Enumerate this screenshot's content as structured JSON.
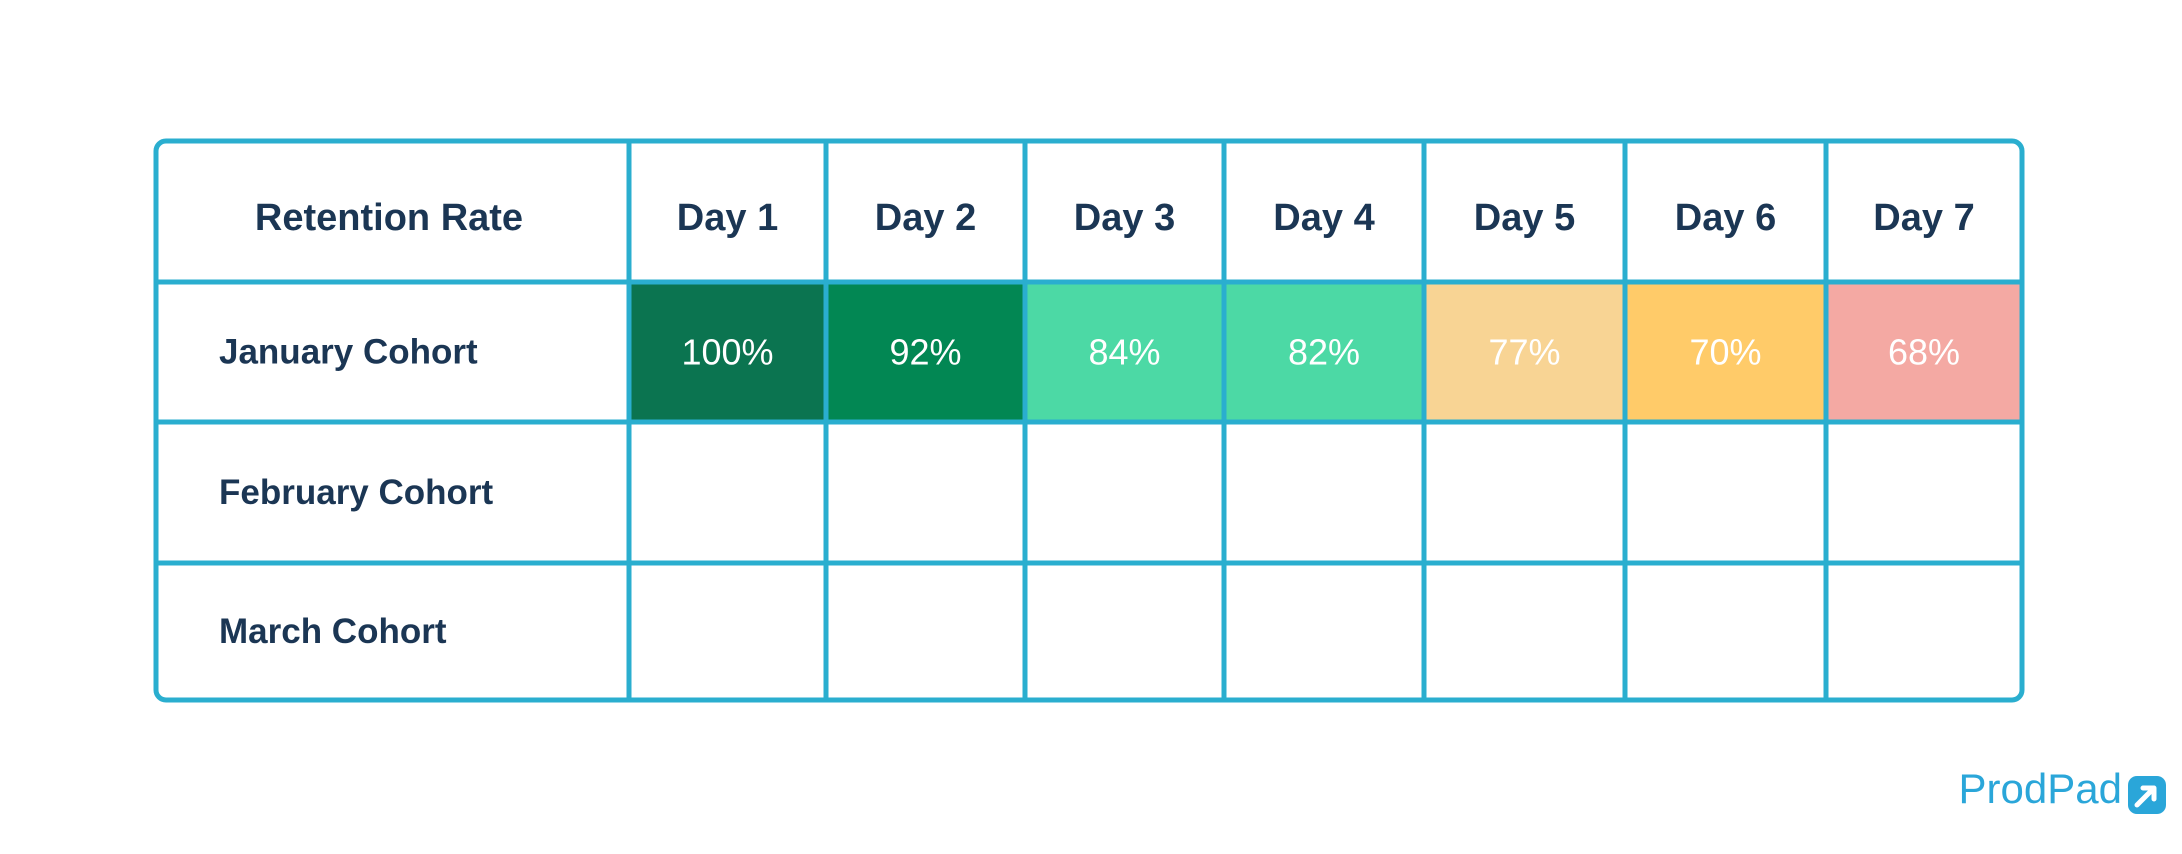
{
  "chart_data": {
    "type": "heatmap",
    "corner_label": "Retention Rate",
    "columns": [
      "Day 1",
      "Day 2",
      "Day 3",
      "Day 4",
      "Day 5",
      "Day 6",
      "Day 7"
    ],
    "rows": [
      {
        "label": "January Cohort",
        "values": [
          100,
          92,
          84,
          82,
          77,
          70,
          68
        ],
        "cell_labels": [
          "100%",
          "92%",
          "84%",
          "82%",
          "77%",
          "70%",
          "68%"
        ]
      },
      {
        "label": "February Cohort",
        "values": [],
        "cell_labels": []
      },
      {
        "label": "March Cohort",
        "values": [],
        "cell_labels": []
      }
    ],
    "cell_colors": [
      "#0b7450",
      "#028753",
      "#4cd9a5",
      "#4cd9a5",
      "#f8d494",
      "#ffcb69",
      "#f4a9a3"
    ],
    "border_color": "#2aaecf",
    "text_color": "#1b3654"
  },
  "brand": {
    "name": "ProdPad",
    "color": "#2aa6d9",
    "icon": "prodpad-logo-icon"
  }
}
